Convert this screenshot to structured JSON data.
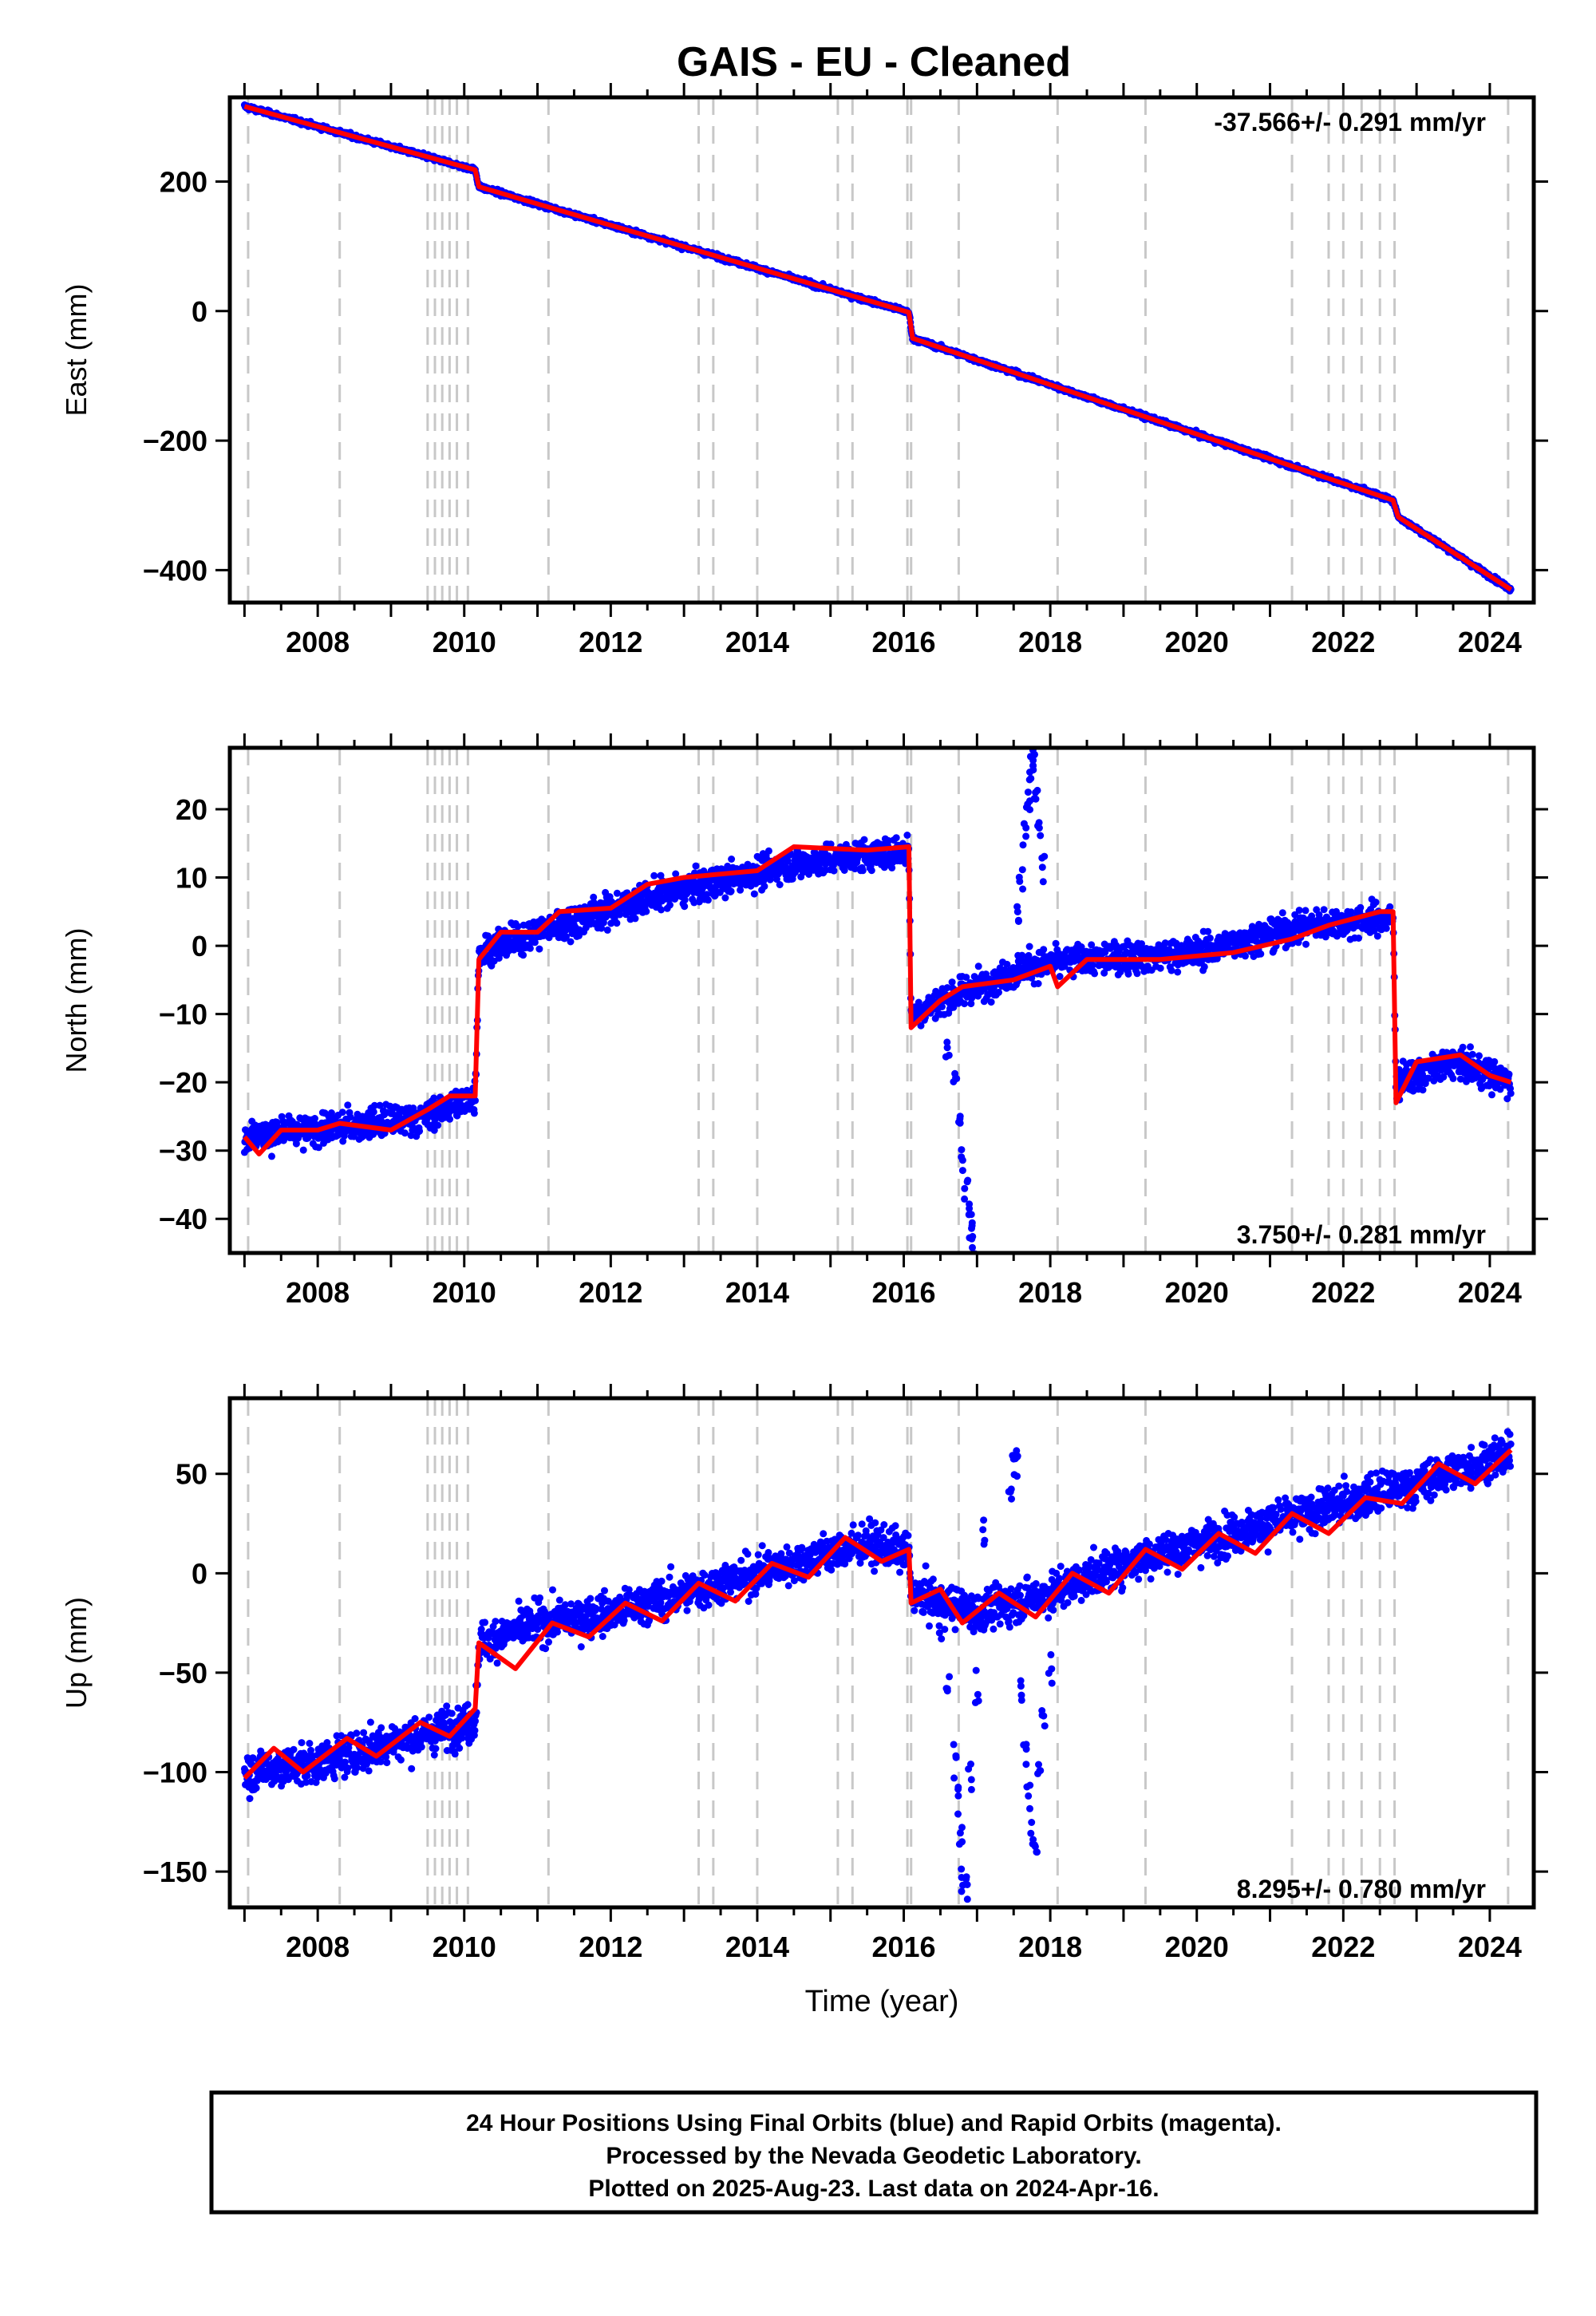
{
  "title": "GAIS  - EU - Cleaned",
  "chart_data": [
    {
      "type": "scatter",
      "component": "East",
      "ylabel": "East (mm)",
      "xlabel": "",
      "xlim": [
        2006.8,
        2024.6
      ],
      "ylim": [
        -450,
        330
      ],
      "yticks": [
        -400,
        -200,
        0,
        200
      ],
      "xticks": [
        2008,
        2010,
        2012,
        2014,
        2016,
        2018,
        2020,
        2022,
        2024
      ],
      "rate_label": "-37.566+/- 0.291 mm/yr",
      "rate_position": "top-right",
      "noise": 2.5,
      "trend": {
        "x": [
          2007.0,
          2010.15,
          2010.2,
          2016.07,
          2016.12,
          2022.68,
          2022.75,
          2024.29
        ],
        "y": [
          316,
          218,
          192,
          -2,
          -42,
          -292,
          -318,
          -430
        ]
      },
      "model": {
        "x": [
          2007.0,
          2010.15,
          2010.2,
          2016.07,
          2016.12,
          2022.68,
          2022.75,
          2024.29
        ],
        "y": [
          316,
          218,
          192,
          -2,
          -42,
          -292,
          -318,
          -430
        ]
      },
      "outliers": []
    },
    {
      "type": "scatter",
      "component": "North",
      "ylabel": "North (mm)",
      "xlabel": "",
      "xlim": [
        2006.8,
        2024.6
      ],
      "ylim": [
        -45,
        29
      ],
      "yticks": [
        -40,
        -30,
        -20,
        -10,
        0,
        10,
        20
      ],
      "xticks": [
        2008,
        2010,
        2012,
        2014,
        2016,
        2018,
        2020,
        2022,
        2024
      ],
      "rate_label": "3.750+/- 0.281 mm/yr",
      "rate_position": "bottom-right",
      "noise": 1.6,
      "trend": {
        "x": [
          2007.0,
          2008.0,
          2009.5,
          2010.15,
          2010.2,
          2011.0,
          2012.5,
          2014.5,
          2016.07,
          2016.1,
          2017.0,
          2017.7,
          2018.5,
          2020.0,
          2021.5,
          2022.68,
          2022.72,
          2023.5,
          2024.29
        ],
        "y": [
          -28,
          -27,
          -25,
          -22,
          -1,
          2,
          7,
          12,
          14,
          -10,
          -6,
          -3,
          -2,
          -1,
          3,
          4,
          -20,
          -17,
          -20
        ]
      },
      "model": {
        "x": [
          2007.0,
          2007.2,
          2007.5,
          2008.0,
          2008.3,
          2009.0,
          2009.5,
          2009.8,
          2010.1,
          2010.15,
          2010.2,
          2010.5,
          2011.0,
          2011.3,
          2012.0,
          2012.5,
          2013.0,
          2014.0,
          2014.5,
          2015.5,
          2016.07,
          2016.1,
          2016.5,
          2016.8,
          2017.5,
          2018.0,
          2018.1,
          2018.5,
          2019.5,
          2020.5,
          2021.3,
          2021.8,
          2022.5,
          2022.68,
          2022.72,
          2023.0,
          2023.6,
          2024.0,
          2024.29
        ],
        "y": [
          -28,
          -30.5,
          -27,
          -27,
          -26,
          -27,
          -24,
          -22,
          -22,
          -22,
          -2,
          2,
          2,
          5,
          5.5,
          9,
          10,
          11,
          14.5,
          14,
          14.5,
          -12,
          -8,
          -6,
          -5,
          -3,
          -6,
          -2,
          -2,
          -1,
          1,
          3,
          5,
          5,
          -23,
          -17,
          -16,
          -19,
          -20
        ]
      },
      "outliers": [
        {
          "x": [
            2016.6,
            2016.7,
            2016.75,
            2016.8,
            2016.85,
            2016.9,
            2016.92,
            2016.95
          ],
          "y": [
            -15,
            -20,
            -25,
            -30,
            -35,
            -38,
            -42,
            -44
          ]
        },
        {
          "x": [
            2017.55,
            2017.6,
            2017.65,
            2017.7,
            2017.72,
            2017.75,
            2017.78,
            2017.8,
            2017.85,
            2017.9
          ],
          "y": [
            5,
            10,
            15,
            20,
            24,
            26,
            28,
            22,
            18,
            12
          ]
        }
      ]
    },
    {
      "type": "scatter",
      "component": "Up",
      "ylabel": "Up (mm)",
      "xlabel": "Time (year)",
      "xlim": [
        2006.8,
        2024.6
      ],
      "ylim": [
        -168,
        88
      ],
      "yticks": [
        -150,
        -100,
        -50,
        0,
        50
      ],
      "xticks": [
        2008,
        2010,
        2012,
        2014,
        2016,
        2018,
        2020,
        2022,
        2024
      ],
      "rate_label": "8.295+/- 0.780 mm/yr",
      "rate_position": "bottom-right",
      "noise": 7,
      "trend": {
        "x": [
          2007.0,
          2008.0,
          2009.0,
          2010.15,
          2010.2,
          2011.0,
          2012.0,
          2013.0,
          2014.0,
          2015.5,
          2016.07,
          2016.1,
          2017.0,
          2018.0,
          2019.0,
          2020.0,
          2021.0,
          2022.0,
          2023.0,
          2024.29
        ],
        "y": [
          -100,
          -95,
          -85,
          -75,
          -35,
          -25,
          -20,
          -10,
          0,
          15,
          10,
          -10,
          -20,
          -10,
          5,
          15,
          25,
          35,
          45,
          60
        ]
      },
      "model": {
        "x": [
          2007.0,
          2007.4,
          2007.8,
          2008.4,
          2008.8,
          2009.4,
          2009.8,
          2010.15,
          2010.2,
          2010.7,
          2011.2,
          2011.7,
          2012.2,
          2012.7,
          2013.2,
          2013.7,
          2014.2,
          2014.7,
          2015.2,
          2015.7,
          2016.07,
          2016.1,
          2016.5,
          2016.8,
          2017.3,
          2017.8,
          2018.3,
          2018.8,
          2019.3,
          2019.8,
          2020.3,
          2020.8,
          2021.3,
          2021.8,
          2022.3,
          2022.8,
          2023.3,
          2023.8,
          2024.29
        ],
        "y": [
          -103,
          -88,
          -100,
          -83,
          -92,
          -75,
          -82,
          -68,
          -35,
          -48,
          -25,
          -32,
          -15,
          -24,
          -5,
          -14,
          5,
          -2,
          18,
          6,
          12,
          -15,
          -8,
          -25,
          -10,
          -22,
          0,
          -10,
          12,
          2,
          20,
          10,
          30,
          20,
          38,
          35,
          55,
          45,
          62
        ]
      },
      "outliers": [
        {
          "x": [
            2016.5,
            2016.6,
            2016.7,
            2016.75,
            2016.78,
            2016.8,
            2016.85,
            2016.9,
            2017.0,
            2017.1
          ],
          "y": [
            -30,
            -60,
            -90,
            -110,
            -130,
            -150,
            -158,
            -100,
            -60,
            20
          ]
        },
        {
          "x": [
            2017.45,
            2017.5,
            2017.55,
            2017.6,
            2017.65,
            2017.7,
            2017.75,
            2017.8,
            2017.85,
            2017.9,
            2018.0
          ],
          "y": [
            40,
            55,
            60,
            -60,
            -90,
            -110,
            -130,
            -140,
            -100,
            -70,
            -50
          ]
        }
      ]
    }
  ],
  "equipment_changes": [
    2007.05,
    2008.3,
    2009.5,
    2009.6,
    2009.7,
    2009.8,
    2009.9,
    2010.05,
    2011.15,
    2013.2,
    2013.4,
    2014.0,
    2015.1,
    2015.3,
    2016.05,
    2016.1,
    2016.75,
    2018.1,
    2019.3,
    2021.3,
    2021.8,
    2022.0,
    2022.25,
    2022.5,
    2022.7,
    2024.25
  ],
  "footer": {
    "line1": "24 Hour Positions Using Final Orbits (blue) and Rapid Orbits (magenta).",
    "line2": "Processed by the Nevada Geodetic Laboratory.",
    "line3": "Plotted on 2025-Aug-23. Last data on 2024-Apr-16."
  },
  "colors": {
    "data": "#0000ff",
    "model": "#ff0000",
    "steps": "#c8c8c8",
    "axis": "#000000"
  }
}
